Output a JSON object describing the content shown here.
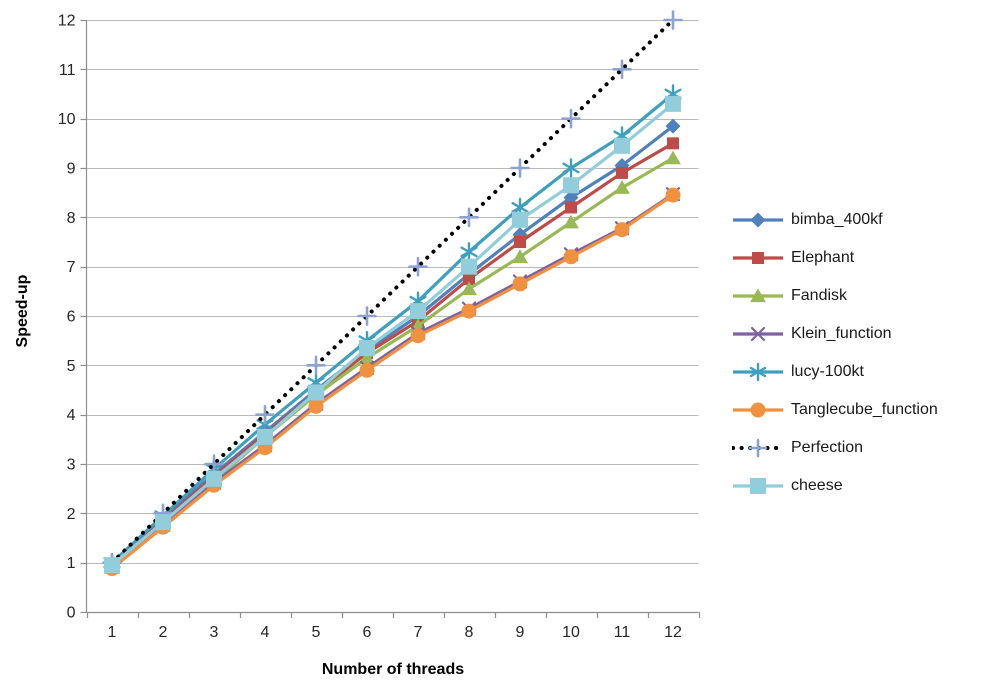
{
  "chart_data": {
    "type": "line",
    "title": "",
    "xlabel": "Number of threads",
    "ylabel": "Speed-up",
    "x": [
      1,
      2,
      3,
      4,
      5,
      6,
      7,
      8,
      9,
      10,
      11,
      12
    ],
    "ylim": [
      0,
      12
    ],
    "y_ticks": [
      0,
      1,
      2,
      3,
      4,
      5,
      6,
      7,
      8,
      9,
      10,
      11,
      12
    ],
    "grid": "horizontal",
    "legend_position": "right",
    "series": [
      {
        "name": "bimba_400kf",
        "color": "#4F81BD",
        "marker": "diamond",
        "marker_size": 15,
        "line": "solid",
        "values": [
          0.95,
          1.9,
          2.8,
          3.65,
          4.5,
          5.3,
          6.0,
          6.85,
          7.65,
          8.4,
          9.05,
          9.85
        ]
      },
      {
        "name": "Elephant",
        "color": "#BE4B48",
        "marker": "square",
        "marker_size": 12,
        "line": "solid",
        "values": [
          0.95,
          1.85,
          2.75,
          3.6,
          4.45,
          5.25,
          5.9,
          6.75,
          7.5,
          8.2,
          8.9,
          9.5
        ]
      },
      {
        "name": "Fandisk",
        "color": "#98B954",
        "marker": "triangle",
        "marker_size": 15,
        "line": "solid",
        "values": [
          0.9,
          1.75,
          2.65,
          3.55,
          4.4,
          5.15,
          5.8,
          6.55,
          7.2,
          7.9,
          8.6,
          9.2
        ]
      },
      {
        "name": "Klein_function",
        "color": "#7E62A1",
        "marker": "x",
        "marker_size": 12,
        "line": "solid",
        "values": [
          0.93,
          1.78,
          2.62,
          3.38,
          4.22,
          4.95,
          5.65,
          6.15,
          6.7,
          7.25,
          7.78,
          8.47
        ]
      },
      {
        "name": "lucy-100kt",
        "color": "#3F9FBF",
        "marker": "asterisk",
        "marker_size": 17,
        "line": "solid",
        "values": [
          1.0,
          1.95,
          2.9,
          3.8,
          4.65,
          5.5,
          6.3,
          7.3,
          8.2,
          9.0,
          9.65,
          10.5
        ]
      },
      {
        "name": "Tanglecube_function",
        "color": "#F0913F",
        "marker": "circle",
        "marker_size": 15,
        "line": "solid",
        "values": [
          0.88,
          1.72,
          2.57,
          3.33,
          4.17,
          4.9,
          5.6,
          6.1,
          6.65,
          7.2,
          7.75,
          8.45
        ]
      },
      {
        "name": "Perfection",
        "color": "#000000",
        "marker": "plus",
        "marker_size": 17,
        "marker_color": "#8CA3D2",
        "line": "dotted",
        "values": [
          1,
          2,
          3,
          4,
          5,
          6,
          7,
          8,
          9,
          10,
          11,
          12
        ]
      },
      {
        "name": "cheese",
        "color": "#92CDDC",
        "marker": "square",
        "marker_size": 16,
        "line": "solid",
        "values": [
          0.95,
          1.82,
          2.7,
          3.55,
          4.45,
          5.35,
          6.1,
          7.0,
          7.95,
          8.65,
          9.45,
          10.3
        ]
      }
    ]
  },
  "colors": {
    "background": "#FFFFFF",
    "gridline": "#B9B9B9",
    "axis": "#8E8E8E",
    "text": "#262626",
    "perfection_marker": "#8CA3D2"
  }
}
